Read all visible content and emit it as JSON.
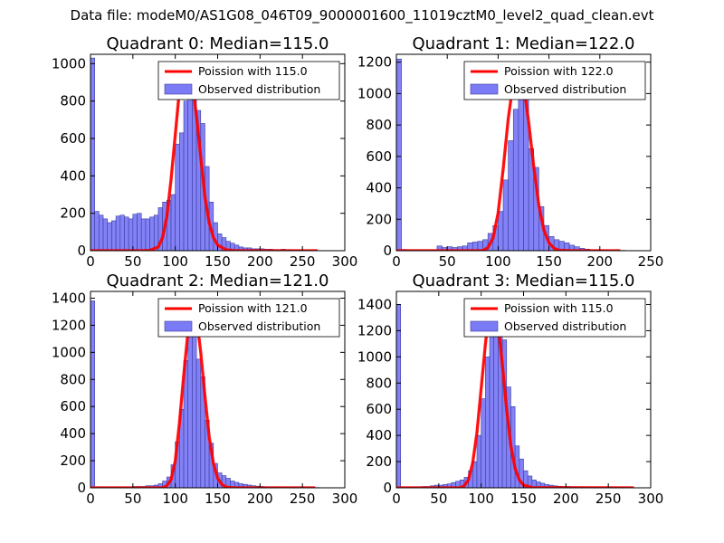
{
  "figure": {
    "suptitle": "Data file: modeM0/AS1G08_046T09_9000001600_11019cztM0_level2_quad_clean.evt"
  },
  "colors": {
    "hist_fill": "#7b7bf5",
    "hist_edge": "#3a3a9e",
    "poisson_line": "#ff0000",
    "axes": "#000000"
  },
  "chart_data": [
    {
      "type": "bar",
      "title": "Quadrant 0: Median=115.0",
      "xlim": [
        0,
        300
      ],
      "ylim": [
        0,
        1050
      ],
      "xticks": [
        0,
        50,
        100,
        150,
        200,
        250,
        300
      ],
      "yticks": [
        0,
        200,
        400,
        600,
        800,
        1000
      ],
      "bin_width": 5,
      "legend_position": "top-right",
      "legend": [
        "Poission with 115.0",
        "Observed distribution"
      ],
      "series": [
        {
          "name": "Observed distribution",
          "kind": "histogram",
          "bins": [
            0,
            5,
            10,
            15,
            20,
            25,
            30,
            35,
            40,
            45,
            50,
            55,
            60,
            65,
            70,
            75,
            80,
            85,
            90,
            95,
            100,
            105,
            110,
            115,
            120,
            125,
            130,
            135,
            140,
            145,
            150,
            155,
            160,
            165,
            170,
            175,
            180,
            185,
            190,
            195,
            200,
            205,
            210,
            215,
            220,
            225,
            230,
            235,
            240,
            245,
            250,
            255,
            260,
            265
          ],
          "counts": [
            1030,
            210,
            190,
            170,
            150,
            160,
            185,
            190,
            180,
            170,
            195,
            200,
            170,
            170,
            180,
            190,
            230,
            260,
            270,
            300,
            570,
            630,
            800,
            920,
            830,
            750,
            680,
            450,
            260,
            150,
            90,
            70,
            50,
            40,
            30,
            20,
            15,
            15,
            10,
            10,
            10,
            8,
            8,
            6,
            5,
            8,
            6,
            4,
            4,
            3,
            2,
            2,
            2,
            1
          ]
        },
        {
          "name": "Poission with 115.0",
          "kind": "line",
          "x": [
            0,
            60,
            70,
            80,
            85,
            90,
            95,
            100,
            105,
            110,
            115,
            120,
            125,
            130,
            135,
            140,
            145,
            150,
            160,
            170,
            268
          ],
          "y": [
            0,
            0,
            2,
            20,
            70,
            180,
            380,
            620,
            860,
            970,
            990,
            900,
            720,
            500,
            290,
            150,
            70,
            30,
            5,
            0,
            0
          ]
        }
      ]
    },
    {
      "type": "bar",
      "title": "Quadrant 1: Median=122.0",
      "xlim": [
        0,
        250
      ],
      "ylim": [
        0,
        1250
      ],
      "xticks": [
        0,
        50,
        100,
        150,
        200,
        250
      ],
      "yticks": [
        0,
        200,
        400,
        600,
        800,
        1000,
        1200
      ],
      "bin_width": 5,
      "legend_position": "top-right",
      "legend": [
        "Poission with 122.0",
        "Observed distribution"
      ],
      "series": [
        {
          "name": "Observed distribution",
          "kind": "histogram",
          "bins": [
            0,
            5,
            10,
            15,
            20,
            25,
            30,
            35,
            40,
            45,
            50,
            55,
            60,
            65,
            70,
            75,
            80,
            85,
            90,
            95,
            100,
            105,
            110,
            115,
            120,
            125,
            130,
            135,
            140,
            145,
            150,
            155,
            160,
            165,
            170,
            175,
            180,
            185,
            190,
            195,
            200,
            205,
            210,
            215,
            220
          ],
          "counts": [
            1220,
            8,
            6,
            6,
            6,
            5,
            6,
            6,
            30,
            20,
            25,
            20,
            25,
            30,
            50,
            55,
            60,
            70,
            110,
            160,
            250,
            450,
            700,
            900,
            1160,
            1010,
            650,
            530,
            280,
            160,
            90,
            70,
            60,
            50,
            35,
            25,
            15,
            10,
            5,
            5,
            5,
            3,
            3,
            2,
            2
          ]
        },
        {
          "name": "Poission with 122.0",
          "kind": "line",
          "x": [
            0,
            85,
            90,
            95,
            100,
            105,
            110,
            115,
            120,
            125,
            130,
            135,
            140,
            145,
            150,
            155,
            160,
            170,
            220
          ],
          "y": [
            0,
            0,
            20,
            80,
            240,
            520,
            840,
            1080,
            1150,
            1060,
            820,
            540,
            290,
            130,
            50,
            15,
            3,
            0,
            0
          ]
        }
      ]
    },
    {
      "type": "bar",
      "title": "Quadrant 2: Median=121.0",
      "xlim": [
        0,
        300
      ],
      "ylim": [
        0,
        1450
      ],
      "xticks": [
        0,
        50,
        100,
        150,
        200,
        250,
        300
      ],
      "yticks": [
        0,
        200,
        400,
        600,
        800,
        1000,
        1200,
        1400
      ],
      "bin_width": 5,
      "legend_position": "top-right",
      "legend": [
        "Poission with 121.0",
        "Observed distribution"
      ],
      "series": [
        {
          "name": "Observed distribution",
          "kind": "histogram",
          "bins": [
            0,
            5,
            10,
            15,
            20,
            25,
            30,
            35,
            40,
            45,
            50,
            55,
            60,
            65,
            70,
            75,
            80,
            85,
            90,
            95,
            100,
            105,
            110,
            115,
            120,
            125,
            130,
            135,
            140,
            145,
            150,
            155,
            160,
            165,
            170,
            175,
            180,
            185,
            190,
            195,
            200,
            205,
            210,
            215,
            220,
            225,
            230,
            235,
            240,
            245,
            250,
            255,
            260,
            265
          ],
          "counts": [
            1380,
            8,
            6,
            5,
            5,
            5,
            5,
            5,
            5,
            5,
            10,
            10,
            10,
            15,
            15,
            20,
            30,
            50,
            80,
            170,
            340,
            580,
            940,
            1360,
            1220,
            950,
            820,
            500,
            330,
            180,
            110,
            90,
            70,
            50,
            40,
            30,
            25,
            20,
            15,
            12,
            10,
            8,
            8,
            6,
            6,
            5,
            4,
            4,
            3,
            3,
            3,
            2,
            2,
            2
          ]
        },
        {
          "name": "Poission with 121.0",
          "kind": "line",
          "x": [
            0,
            85,
            90,
            95,
            100,
            105,
            110,
            115,
            120,
            125,
            130,
            135,
            140,
            145,
            150,
            155,
            160,
            170,
            265
          ],
          "y": [
            0,
            0,
            15,
            60,
            200,
            480,
            830,
            1150,
            1320,
            1260,
            1000,
            680,
            380,
            180,
            70,
            25,
            5,
            0,
            0
          ]
        }
      ]
    },
    {
      "type": "bar",
      "title": "Quadrant 3: Median=115.0",
      "xlim": [
        0,
        300
      ],
      "ylim": [
        0,
        1500
      ],
      "xticks": [
        0,
        50,
        100,
        150,
        200,
        250,
        300
      ],
      "yticks": [
        0,
        200,
        400,
        600,
        800,
        1000,
        1200,
        1400
      ],
      "bin_width": 5,
      "legend_position": "top-right",
      "legend": [
        "Poission with 115.0",
        "Observed distribution"
      ],
      "series": [
        {
          "name": "Observed distribution",
          "kind": "histogram",
          "bins": [
            0,
            5,
            10,
            15,
            20,
            25,
            30,
            35,
            40,
            45,
            50,
            55,
            60,
            65,
            70,
            75,
            80,
            85,
            90,
            95,
            100,
            105,
            110,
            115,
            120,
            125,
            130,
            135,
            140,
            145,
            150,
            155,
            160,
            165,
            170,
            175,
            180,
            185,
            190,
            195,
            200,
            205,
            210,
            215,
            220,
            225,
            230,
            235,
            240,
            245,
            250,
            255,
            260,
            265,
            270,
            275
          ],
          "counts": [
            1400,
            8,
            8,
            8,
            8,
            8,
            10,
            10,
            15,
            20,
            20,
            25,
            30,
            40,
            50,
            60,
            80,
            130,
            200,
            400,
            680,
            1000,
            1280,
            1400,
            1370,
            1130,
            770,
            620,
            320,
            220,
            130,
            90,
            60,
            45,
            35,
            25,
            20,
            15,
            12,
            10,
            10,
            8,
            8,
            6,
            6,
            6,
            5,
            5,
            4,
            4,
            3,
            3,
            3,
            3,
            2,
            2
          ]
        },
        {
          "name": "Poission with 115.0",
          "kind": "line",
          "x": [
            0,
            75,
            80,
            85,
            90,
            95,
            100,
            105,
            110,
            115,
            120,
            125,
            130,
            135,
            140,
            145,
            150,
            160,
            280
          ],
          "y": [
            0,
            0,
            15,
            60,
            190,
            420,
            760,
            1100,
            1380,
            1430,
            1260,
            940,
            600,
            320,
            150,
            60,
            20,
            2,
            0
          ]
        }
      ]
    }
  ]
}
